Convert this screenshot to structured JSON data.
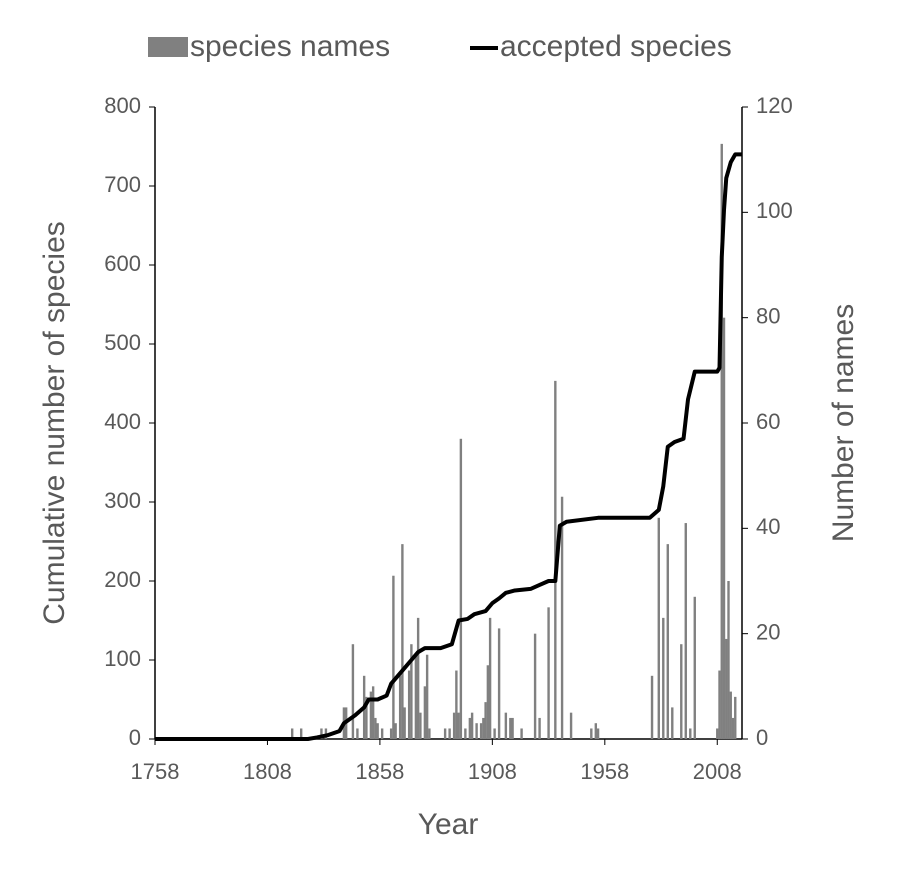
{
  "chart_data": {
    "type": "combo",
    "x_label": "Year",
    "y_label": "Cumulative number of species",
    "y2_label": "Number of names",
    "xlim": [
      1758,
      2019
    ],
    "xticks": [
      1758,
      1808,
      1858,
      1908,
      1958,
      2008
    ],
    "ylim": [
      0,
      800
    ],
    "yticks": [
      0,
      100,
      200,
      300,
      400,
      500,
      600,
      700,
      800
    ],
    "y2lim": [
      0,
      120
    ],
    "y2ticks": [
      0,
      20,
      40,
      60,
      80,
      100,
      120
    ],
    "legend": "top",
    "series": [
      {
        "name": "species names",
        "type": "bar",
        "axis": "y2",
        "color": "#808080",
        "x": [
          1819,
          1823,
          1832,
          1834,
          1842,
          1843,
          1846,
          1848,
          1851,
          1852,
          1854,
          1855,
          1856,
          1857,
          1859,
          1863,
          1864,
          1865,
          1867,
          1868,
          1869,
          1871,
          1872,
          1874,
          1875,
          1876,
          1878,
          1879,
          1880,
          1887,
          1889,
          1891,
          1892,
          1893,
          1894,
          1896,
          1898,
          1899,
          1901,
          1903,
          1904,
          1905,
          1906,
          1907,
          1909,
          1911,
          1914,
          1916,
          1917,
          1921,
          1927,
          1929,
          1933,
          1936,
          1939,
          1943,
          1952,
          1954,
          1955,
          1979,
          1982,
          1984,
          1986,
          1988,
          1992,
          1994,
          1996,
          1998,
          2008,
          2009,
          2010,
          2011,
          2012,
          2013,
          2014,
          2015,
          2016
        ],
        "values": [
          2,
          2,
          2,
          2,
          6,
          6,
          18,
          2,
          12,
          8,
          9,
          10,
          4,
          3,
          2,
          2,
          31,
          3,
          12,
          37,
          6,
          13,
          18,
          16,
          23,
          5,
          10,
          16,
          2,
          2,
          2,
          5,
          13,
          5,
          57,
          2,
          4,
          5,
          3,
          3,
          4,
          7,
          14,
          23,
          2,
          21,
          5,
          4,
          4,
          2,
          20,
          4,
          25,
          68,
          46,
          5,
          2,
          3,
          2,
          12,
          42,
          23,
          37,
          6,
          18,
          41,
          2,
          27,
          2,
          13,
          113,
          80,
          19,
          30,
          9,
          4,
          8
        ]
      },
      {
        "name": "accepted species",
        "type": "line",
        "color": "#000000",
        "x": [
          1758,
          1826,
          1830,
          1835,
          1840,
          1842,
          1847,
          1851,
          1853,
          1857,
          1861,
          1863,
          1866,
          1869,
          1872,
          1875,
          1878,
          1885,
          1890,
          1893,
          1897,
          1900,
          1905,
          1908,
          1911,
          1914,
          1918,
          1925,
          1929,
          1933,
          1936,
          1938,
          1941,
          1955,
          1978,
          1982,
          1984,
          1986,
          1989,
          1993,
          1995,
          1998,
          2008,
          2009,
          2010,
          2011,
          2012,
          2014,
          2016,
          2019
        ],
        "values": [
          0,
          0,
          2,
          5,
          10,
          20,
          30,
          40,
          50,
          50,
          55,
          70,
          80,
          90,
          100,
          110,
          115,
          115,
          120,
          150,
          152,
          158,
          162,
          172,
          178,
          185,
          188,
          190,
          195,
          200,
          200,
          270,
          275,
          280,
          280,
          290,
          320,
          370,
          376,
          380,
          430,
          465,
          465,
          470,
          610,
          670,
          710,
          730,
          740,
          740
        ]
      }
    ]
  }
}
